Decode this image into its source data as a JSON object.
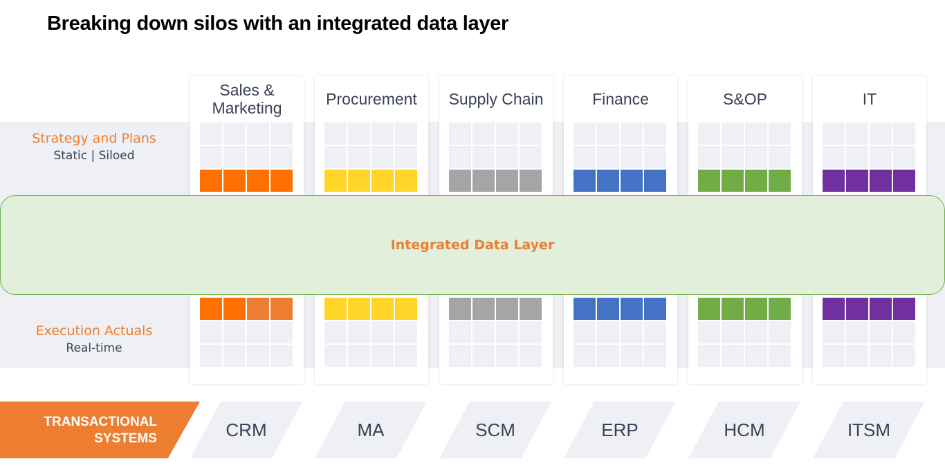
{
  "title": "Breaking down silos with an integrated data layer",
  "rows": {
    "strategy": {
      "label": "Strategy and Plans",
      "sub": "Static | Siloed"
    },
    "execution": {
      "label": "Execution Actuals",
      "sub": "Real-time"
    }
  },
  "integrated_layer": "Integrated Data Layer",
  "columns": [
    {
      "label": "Sales & Marketing",
      "color": "#ff7000",
      "bottom_colors": [
        "#ff7000",
        "#ff7000",
        "#ed7d31",
        "#ed7d31"
      ]
    },
    {
      "label": "Procurement",
      "color": "#ffd52a"
    },
    {
      "label": "Supply Chain",
      "color": "#a5a5a5"
    },
    {
      "label": "Finance",
      "color": "#4472c4"
    },
    {
      "label": "S&OP",
      "color": "#70ad47"
    },
    {
      "label": "IT",
      "color": "#7030a0"
    }
  ],
  "transactional": {
    "label_line1": "TRANSACTIONAL",
    "label_line2": "SYSTEMS",
    "color": "#ed7d31"
  },
  "systems": [
    "CRM",
    "MA",
    "SCM",
    "ERP",
    "HCM",
    "ITSM"
  ]
}
